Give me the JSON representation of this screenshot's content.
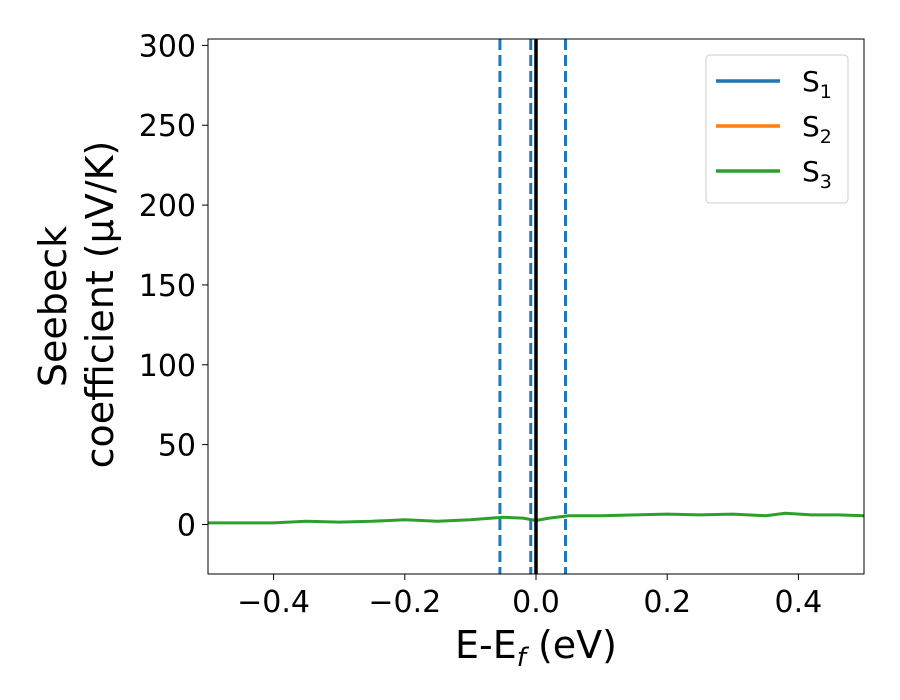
{
  "chart_data": {
    "type": "line",
    "xlabel": "E-E_f (eV)",
    "ylabel_line1": "Seebeck",
    "ylabel_line2": "coefficient  (μV/K)",
    "xlim": [
      -0.5,
      0.5
    ],
    "ylim": [
      -31,
      304
    ],
    "x_ticks": [
      -0.4,
      -0.2,
      0.0,
      0.2,
      0.4
    ],
    "x_tick_labels": [
      "−0.4",
      "−0.2",
      "0.0",
      "0.2",
      "0.4"
    ],
    "y_ticks": [
      0,
      50,
      100,
      150,
      200,
      250,
      300
    ],
    "y_tick_labels": [
      "0",
      "50",
      "100",
      "150",
      "200",
      "250",
      "300"
    ],
    "legend_position": "top-right",
    "legend": [
      {
        "base": "S",
        "sub": "1",
        "color": "#1f77b4"
      },
      {
        "base": "S",
        "sub": "2",
        "color": "#ff7f0e"
      },
      {
        "base": "S",
        "sub": "3",
        "color": "#2ca02c"
      }
    ],
    "series": [
      {
        "name": "S3",
        "color": "#2ca02c",
        "x": [
          -0.5,
          -0.45,
          -0.4,
          -0.35,
          -0.3,
          -0.25,
          -0.2,
          -0.15,
          -0.1,
          -0.05,
          -0.02,
          0.0,
          0.02,
          0.05,
          0.1,
          0.15,
          0.2,
          0.25,
          0.3,
          0.35,
          0.38,
          0.42,
          0.46,
          0.5
        ],
        "y": [
          1,
          1,
          1,
          2,
          1.5,
          2,
          3,
          2,
          3,
          4.5,
          4,
          2.5,
          4,
          5.5,
          5.5,
          6,
          6.5,
          6,
          6.5,
          5.5,
          7,
          6,
          6,
          5.5
        ]
      }
    ],
    "vlines": [
      {
        "x": -0.055,
        "style": "dashed",
        "color": "#1f77b4"
      },
      {
        "x": -0.008,
        "style": "dashed",
        "color": "#1f77b4"
      },
      {
        "x": 0.045,
        "style": "dashed",
        "color": "#1f77b4"
      },
      {
        "x": 0.0,
        "style": "solid",
        "color": "#000000"
      }
    ]
  }
}
